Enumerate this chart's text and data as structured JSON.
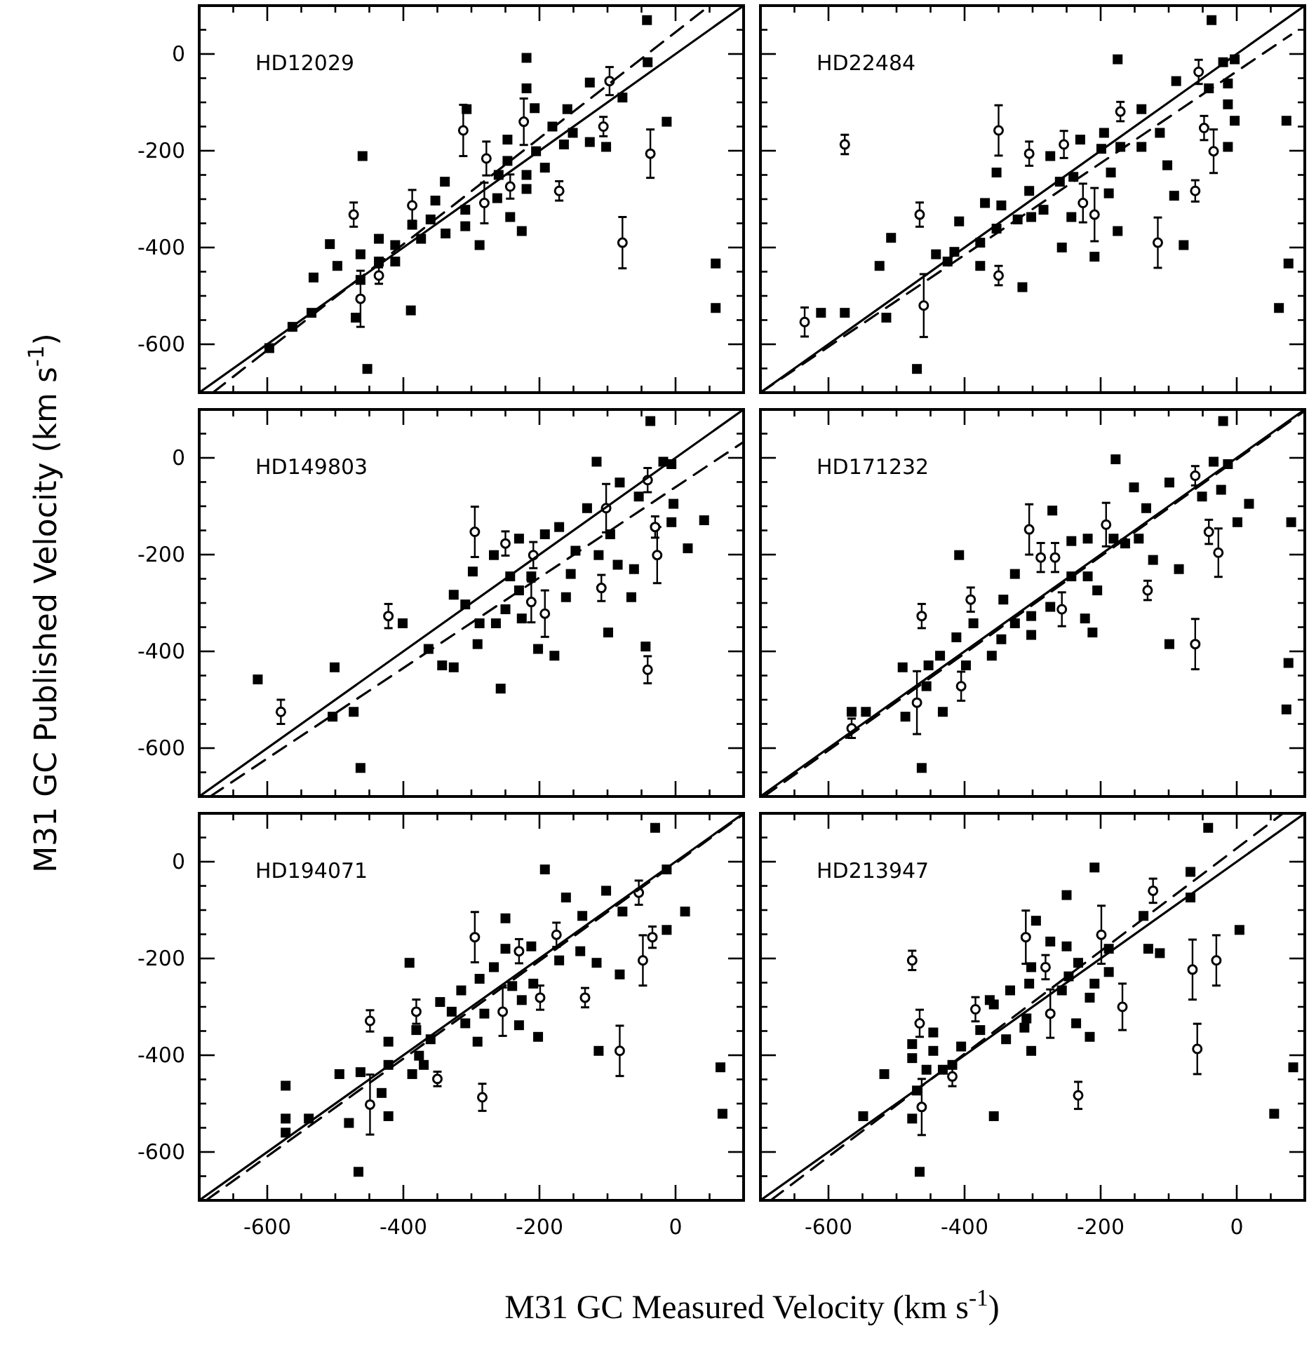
{
  "chart_data": [
    {
      "type": "scatter",
      "title": "HD12029",
      "tick_labels": "y",
      "xlim": [
        -700,
        100
      ],
      "ylim": [
        -700,
        100
      ],
      "xticks": [
        {
          "value": -650,
          "label": null
        },
        -600,
        {
          "value": -550,
          "label": null
        },
        {
          "value": -500,
          "label": null
        },
        {
          "value": -450,
          "label": null
        },
        -400,
        {
          "value": -350,
          "label": null
        },
        {
          "value": -300,
          "label": null
        },
        {
          "value": -250,
          "label": null
        },
        -200,
        {
          "value": -150,
          "label": null
        },
        {
          "value": -100,
          "label": null
        },
        {
          "value": -50,
          "label": null
        },
        0,
        {
          "value": 50,
          "label": null
        }
      ],
      "yticks": [
        {
          "value": -650,
          "label": null
        },
        -600,
        {
          "value": -550,
          "label": null
        },
        {
          "value": -500,
          "label": null
        },
        {
          "value": -450,
          "label": null
        },
        -400,
        {
          "value": -350,
          "label": null
        },
        {
          "value": -300,
          "label": null
        },
        {
          "value": -250,
          "label": null
        },
        -200,
        {
          "value": -150,
          "label": null
        },
        {
          "value": -100,
          "label": null
        },
        {
          "value": -50,
          "label": null
        },
        0,
        {
          "value": 50,
          "label": null
        }
      ],
      "series": [
        {
          "type": "scatter",
          "marker": "square",
          "color": "#000000",
          "x": [
            -42,
            -219,
            -41,
            -126,
            -78,
            -219,
            -207,
            -159,
            -307,
            -13,
            -181,
            -151,
            -164,
            -126,
            -102,
            -205,
            -192,
            -247,
            -247,
            -260,
            -219,
            -219,
            -262,
            -243,
            -226,
            -288,
            -309,
            -309,
            -339,
            -353,
            -338,
            -387,
            -374,
            -360,
            -412,
            -412,
            -436,
            -436,
            -463,
            -463,
            -508,
            -497,
            -532,
            -535,
            -470,
            -460,
            -389,
            -453,
            59,
            59,
            -597,
            -563
          ],
          "values": [
            70,
            -8,
            -17,
            -59,
            -90,
            -71,
            -112,
            -114,
            -114,
            -140,
            -150,
            -163,
            -187,
            -182,
            -192,
            -201,
            -235,
            -177,
            -221,
            -250,
            -250,
            -279,
            -298,
            -337,
            -366,
            -395,
            -322,
            -356,
            -264,
            -303,
            -371,
            -353,
            -382,
            -342,
            -395,
            -429,
            -429,
            -382,
            -414,
            -467,
            -393,
            -438,
            -462,
            -535,
            -545,
            -211,
            -530,
            -651,
            -433,
            -525,
            -608,
            -564
          ]
        },
        {
          "type": "scatter",
          "marker": "circle",
          "color": "#000000",
          "x": [
            -97,
            -223,
            -312,
            -106,
            -37,
            -278,
            -243,
            -171,
            -281,
            -387,
            -436,
            -473,
            -463,
            -78
          ],
          "values": [
            -56,
            -140,
            -158,
            -150,
            -206,
            -216,
            -274,
            -283,
            -308,
            -313,
            -458,
            -332,
            -506,
            -390
          ],
          "errors": [
            29,
            48,
            53,
            20,
            50,
            35,
            25,
            20,
            42,
            32,
            17,
            25,
            58,
            53
          ]
        },
        {
          "type": "line",
          "line_style": "solid",
          "color": "#000000",
          "x": [
            -700,
            100
          ],
          "values": [
            -700,
            100
          ]
        },
        {
          "type": "line",
          "line_style": "dashed",
          "color": "#000000",
          "x": [
            -680,
            50
          ],
          "values": [
            -700,
            100
          ]
        }
      ]
    },
    {
      "type": "scatter",
      "title": "HD22484",
      "tick_labels": false,
      "xlim": [
        -700,
        100
      ],
      "ylim": [
        -700,
        100
      ],
      "xticks": [
        {
          "value": -650,
          "label": null
        },
        -600,
        {
          "value": -550,
          "label": null
        },
        {
          "value": -500,
          "label": null
        },
        {
          "value": -450,
          "label": null
        },
        -400,
        {
          "value": -350,
          "label": null
        },
        {
          "value": -300,
          "label": null
        },
        {
          "value": -250,
          "label": null
        },
        -200,
        {
          "value": -150,
          "label": null
        },
        {
          "value": -100,
          "label": null
        },
        {
          "value": -50,
          "label": null
        },
        0,
        {
          "value": 50,
          "label": null
        }
      ],
      "yticks": [
        {
          "value": -650,
          "label": null
        },
        -600,
        {
          "value": -550,
          "label": null
        },
        {
          "value": -500,
          "label": null
        },
        {
          "value": -450,
          "label": null
        },
        -400,
        {
          "value": -350,
          "label": null
        },
        {
          "value": -300,
          "label": null
        },
        {
          "value": -250,
          "label": null
        },
        -200,
        {
          "value": -150,
          "label": null
        },
        {
          "value": -100,
          "label": null
        },
        {
          "value": -50,
          "label": null
        },
        0,
        {
          "value": 50,
          "label": null
        }
      ],
      "series": [
        {
          "type": "scatter",
          "marker": "square",
          "color": "#000000",
          "x": [
            -37,
            -175,
            -20,
            -3,
            -89,
            -41,
            -13,
            -13,
            -3,
            -13,
            73,
            -92,
            -102,
            -140,
            -113,
            -140,
            -171,
            -195,
            -199,
            -230,
            -274,
            -353,
            -260,
            -240,
            -185,
            -188,
            -243,
            -284,
            -305,
            -302,
            -322,
            -346,
            -370,
            -353,
            -377,
            -408,
            -415,
            -425,
            -442,
            -377,
            -315,
            -257,
            -209,
            -175,
            -78,
            -508,
            -525,
            -515,
            -576,
            -611,
            -470,
            76,
            62
          ],
          "values": [
            70,
            -11,
            -17,
            -11,
            -56,
            -71,
            -61,
            -104,
            -138,
            -192,
            -138,
            -293,
            -230,
            -192,
            -163,
            -114,
            -192,
            -163,
            -196,
            -177,
            -211,
            -245,
            -264,
            -254,
            -245,
            -288,
            -337,
            -322,
            -283,
            -337,
            -342,
            -313,
            -308,
            -361,
            -390,
            -346,
            -409,
            -429,
            -414,
            -438,
            -482,
            -400,
            -419,
            -366,
            -395,
            -380,
            -438,
            -545,
            -535,
            -535,
            -651,
            -433,
            -525
          ]
        },
        {
          "type": "scatter",
          "marker": "circle",
          "color": "#000000",
          "x": [
            -56,
            -48,
            -34,
            -61,
            -171,
            -254,
            -305,
            -350,
            -226,
            -209,
            -350,
            -116,
            -466,
            -460,
            -635,
            -576
          ],
          "values": [
            -37,
            -153,
            -201,
            -283,
            -119,
            -187,
            -206,
            -158,
            -308,
            -332,
            -458,
            -390,
            -332,
            -520,
            -554,
            -187
          ],
          "errors": [
            25,
            25,
            45,
            22,
            20,
            28,
            25,
            52,
            40,
            55,
            20,
            52,
            25,
            65,
            30,
            20
          ]
        },
        {
          "type": "line",
          "line_style": "solid",
          "color": "#000000",
          "x": [
            -700,
            100
          ],
          "values": [
            -700,
            100
          ]
        },
        {
          "type": "line",
          "line_style": "dashed",
          "color": "#000000",
          "x": [
            -700,
            80
          ],
          "values": [
            -700,
            40
          ]
        }
      ]
    },
    {
      "type": "scatter",
      "title": "HD149803",
      "tick_labels": "y",
      "ylabel": "M31 GC Published Velocity (km s$^{-1}$)",
      "xlim": [
        -700,
        100
      ],
      "ylim": [
        -700,
        100
      ],
      "xticks": [
        {
          "value": -650,
          "label": null
        },
        -600,
        {
          "value": -550,
          "label": null
        },
        {
          "value": -500,
          "label": null
        },
        {
          "value": -450,
          "label": null
        },
        -400,
        {
          "value": -350,
          "label": null
        },
        {
          "value": -300,
          "label": null
        },
        {
          "value": -250,
          "label": null
        },
        -200,
        {
          "value": -150,
          "label": null
        },
        {
          "value": -100,
          "label": null
        },
        {
          "value": -50,
          "label": null
        },
        0,
        {
          "value": 50,
          "label": null
        }
      ],
      "yticks": [
        {
          "value": -650,
          "label": null
        },
        -600,
        {
          "value": -550,
          "label": null
        },
        {
          "value": -500,
          "label": null
        },
        {
          "value": -450,
          "label": null
        },
        -400,
        {
          "value": -350,
          "label": null
        },
        {
          "value": -300,
          "label": null
        },
        {
          "value": -250,
          "label": null
        },
        -200,
        {
          "value": -150,
          "label": null
        },
        {
          "value": -100,
          "label": null
        },
        {
          "value": -50,
          "label": null
        },
        0,
        {
          "value": 50,
          "label": null
        }
      ],
      "series": [
        {
          "type": "scatter",
          "marker": "square",
          "color": "#000000",
          "x": [
            -37,
            -116,
            -18,
            -6,
            -82,
            -54,
            -130,
            -3,
            -6,
            42,
            18,
            -96,
            -113,
            -85,
            -61,
            -65,
            -99,
            -44,
            -147,
            -154,
            -161,
            -171,
            -192,
            -212,
            -230,
            -267,
            -243,
            -230,
            -226,
            -250,
            -264,
            -288,
            -291,
            -298,
            -309,
            -326,
            -202,
            -178,
            -257,
            -363,
            -343,
            -326,
            -401,
            -501,
            -504,
            -473,
            -614,
            -463
          ],
          "values": [
            76,
            -8,
            -8,
            -13,
            -51,
            -80,
            -104,
            -95,
            -133,
            -129,
            -187,
            -158,
            -201,
            -221,
            -230,
            -288,
            -361,
            -390,
            -192,
            -240,
            -288,
            -143,
            -158,
            -245,
            -167,
            -201,
            -245,
            -274,
            -332,
            -313,
            -342,
            -342,
            -385,
            -235,
            -303,
            -283,
            -395,
            -409,
            -477,
            -395,
            -429,
            -433,
            -342,
            -433,
            -535,
            -525,
            -458,
            -641
          ]
        },
        {
          "type": "scatter",
          "marker": "circle",
          "color": "#000000",
          "x": [
            -102,
            -41,
            -30,
            -27,
            -109,
            -41,
            -209,
            -212,
            -192,
            -250,
            -295,
            -422,
            -580
          ],
          "values": [
            -104,
            -46,
            -143,
            -201,
            -269,
            -438,
            -201,
            -298,
            -322,
            -177,
            -153,
            -327,
            -525
          ],
          "errors": [
            50,
            25,
            22,
            58,
            27,
            28,
            27,
            42,
            48,
            25,
            52,
            25,
            25
          ]
        },
        {
          "type": "line",
          "line_style": "solid",
          "color": "#000000",
          "x": [
            -700,
            100
          ],
          "values": [
            -700,
            100
          ]
        },
        {
          "type": "line",
          "line_style": "dashed",
          "color": "#000000",
          "x": [
            -684,
            100
          ],
          "values": [
            -700,
            33
          ]
        }
      ]
    },
    {
      "type": "scatter",
      "title": "HD171232",
      "tick_labels": false,
      "xlim": [
        -700,
        100
      ],
      "ylim": [
        -700,
        100
      ],
      "xticks": [
        {
          "value": -650,
          "label": null
        },
        -600,
        {
          "value": -550,
          "label": null
        },
        {
          "value": -500,
          "label": null
        },
        {
          "value": -450,
          "label": null
        },
        -400,
        {
          "value": -350,
          "label": null
        },
        {
          "value": -300,
          "label": null
        },
        {
          "value": -250,
          "label": null
        },
        -200,
        {
          "value": -150,
          "label": null
        },
        {
          "value": -100,
          "label": null
        },
        {
          "value": -50,
          "label": null
        },
        0,
        {
          "value": 50,
          "label": null
        }
      ],
      "yticks": [
        {
          "value": -650,
          "label": null
        },
        -600,
        {
          "value": -550,
          "label": null
        },
        {
          "value": -500,
          "label": null
        },
        {
          "value": -450,
          "label": null
        },
        -400,
        {
          "value": -350,
          "label": null
        },
        {
          "value": -300,
          "label": null
        },
        {
          "value": -250,
          "label": null
        },
        -200,
        {
          "value": -150,
          "label": null
        },
        {
          "value": -100,
          "label": null
        },
        {
          "value": -50,
          "label": null
        },
        0,
        {
          "value": 50,
          "label": null
        }
      ],
      "series": [
        {
          "type": "scatter",
          "marker": "square",
          "color": "#000000",
          "x": [
            -20,
            -178,
            -34,
            -13,
            -151,
            -99,
            -51,
            -23,
            18,
            1,
            80,
            -133,
            -271,
            -144,
            -164,
            -181,
            -219,
            -243,
            -326,
            -408,
            -243,
            -219,
            -205,
            -223,
            -212,
            -274,
            -302,
            -302,
            -326,
            -346,
            -343,
            -387,
            -412,
            -398,
            -360,
            -436,
            -453,
            -456,
            -491,
            -432,
            -487,
            -545,
            -566,
            -463,
            -123,
            -85,
            -99,
            76,
            73
          ],
          "values": [
            76,
            -3,
            -8,
            -13,
            -61,
            -51,
            -80,
            -66,
            -95,
            -133,
            -133,
            -104,
            -109,
            -167,
            -177,
            -167,
            -167,
            -172,
            -240,
            -201,
            -245,
            -245,
            -274,
            -332,
            -361,
            -308,
            -327,
            -366,
            -342,
            -375,
            -293,
            -342,
            -371,
            -429,
            -409,
            -409,
            -429,
            -472,
            -433,
            -525,
            -535,
            -525,
            -525,
            -641,
            -211,
            -230,
            -385,
            -424,
            -520
          ]
        },
        {
          "type": "scatter",
          "marker": "circle",
          "color": "#000000",
          "x": [
            -61,
            -192,
            -305,
            -288,
            -267,
            -257,
            -391,
            -405,
            -463,
            -470,
            -566,
            -131,
            -27,
            -41,
            -61
          ],
          "values": [
            -37,
            -138,
            -148,
            -206,
            -206,
            -313,
            -293,
            -472,
            -327,
            -506,
            -559,
            -274,
            -196,
            -153,
            -385
          ],
          "errors": [
            20,
            45,
            52,
            30,
            30,
            35,
            25,
            30,
            25,
            65,
            20,
            20,
            50,
            25,
            52
          ]
        },
        {
          "type": "line",
          "line_style": "solid",
          "color": "#000000",
          "x": [
            -700,
            100
          ],
          "values": [
            -700,
            100
          ]
        },
        {
          "type": "line",
          "line_style": "dashed",
          "color": "#000000",
          "x": [
            -695,
            100
          ],
          "values": [
            -700,
            97
          ]
        }
      ]
    },
    {
      "type": "scatter",
      "title": "HD194071",
      "xlabel": "M31 GC Measured Velocity (km s$^{-1}$)",
      "xlim": [
        -700,
        100
      ],
      "ylim": [
        -700,
        100
      ],
      "xticks": [
        {
          "value": -650,
          "label": null
        },
        -600,
        {
          "value": -550,
          "label": null
        },
        {
          "value": -500,
          "label": null
        },
        {
          "value": -450,
          "label": null
        },
        -400,
        {
          "value": -350,
          "label": null
        },
        {
          "value": -300,
          "label": null
        },
        {
          "value": -250,
          "label": null
        },
        -200,
        {
          "value": -150,
          "label": null
        },
        {
          "value": -100,
          "label": null
        },
        {
          "value": -50,
          "label": null
        },
        0,
        {
          "value": 50,
          "label": null
        }
      ],
      "yticks": [
        {
          "value": -650,
          "label": null
        },
        -600,
        {
          "value": -550,
          "label": null
        },
        {
          "value": -500,
          "label": null
        },
        {
          "value": -450,
          "label": null
        },
        -400,
        {
          "value": -350,
          "label": null
        },
        {
          "value": -300,
          "label": null
        },
        {
          "value": -250,
          "label": null
        },
        -200,
        {
          "value": -150,
          "label": null
        },
        {
          "value": -100,
          "label": null
        },
        {
          "value": -50,
          "label": null
        },
        0,
        {
          "value": 50,
          "label": null
        }
      ],
      "series": [
        {
          "type": "scatter",
          "marker": "square",
          "color": "#000000",
          "x": [
            -30,
            -192,
            -13,
            -102,
            -161,
            -78,
            14,
            -137,
            -13,
            -82,
            -171,
            -140,
            -116,
            -250,
            -250,
            -212,
            -267,
            -288,
            -209,
            -226,
            -240,
            -230,
            -202,
            -281,
            -291,
            -315,
            -309,
            -346,
            -329,
            -381,
            -360,
            -377,
            -370,
            -387,
            -391,
            -422,
            -422,
            -432,
            -422,
            -463,
            -494,
            -480,
            -539,
            -573,
            -573,
            -573,
            -466,
            -113,
            66,
            69
          ],
          "values": [
            70,
            -16,
            -16,
            -60,
            -74,
            -103,
            -103,
            -112,
            -141,
            -233,
            -204,
            -185,
            -209,
            -117,
            -180,
            -175,
            -218,
            -242,
            -252,
            -286,
            -257,
            -338,
            -362,
            -314,
            -372,
            -266,
            -334,
            -290,
            -310,
            -348,
            -367,
            -401,
            -420,
            -439,
            -209,
            -372,
            -420,
            -478,
            -526,
            -435,
            -439,
            -540,
            -531,
            -531,
            -560,
            -463,
            -641,
            -391,
            -425,
            -521
          ]
        },
        {
          "type": "scatter",
          "marker": "circle",
          "color": "#000000",
          "x": [
            -54,
            -34,
            -48,
            -175,
            -295,
            -230,
            -199,
            -254,
            -381,
            -350,
            -449,
            -449,
            -284,
            -133,
            -82
          ],
          "values": [
            -64,
            -156,
            -204,
            -151,
            -156,
            -185,
            -281,
            -310,
            -310,
            -449,
            -329,
            -502,
            -487,
            -281,
            -391
          ],
          "errors": [
            25,
            22,
            52,
            25,
            52,
            25,
            25,
            50,
            25,
            15,
            22,
            62,
            28,
            20,
            52
          ]
        },
        {
          "type": "line",
          "line_style": "solid",
          "color": "#000000",
          "x": [
            -700,
            100
          ],
          "values": [
            -700,
            100
          ]
        },
        {
          "type": "line",
          "line_style": "dashed",
          "color": "#000000",
          "x": [
            -690,
            100
          ],
          "values": [
            -700,
            98
          ]
        }
      ]
    },
    {
      "type": "scatter",
      "title": "HD213947",
      "tick_labels": "x",
      "xlim": [
        -700,
        100
      ],
      "ylim": [
        -700,
        100
      ],
      "xticks": [
        {
          "value": -650,
          "label": null
        },
        -600,
        {
          "value": -550,
          "label": null
        },
        {
          "value": -500,
          "label": null
        },
        {
          "value": -450,
          "label": null
        },
        -400,
        {
          "value": -350,
          "label": null
        },
        {
          "value": -300,
          "label": null
        },
        {
          "value": -250,
          "label": null
        },
        -200,
        {
          "value": -150,
          "label": null
        },
        {
          "value": -100,
          "label": null
        },
        {
          "value": -50,
          "label": null
        },
        0,
        {
          "value": 50,
          "label": null
        }
      ],
      "yticks": [
        {
          "value": -650,
          "label": null
        },
        -600,
        {
          "value": -550,
          "label": null
        },
        {
          "value": -500,
          "label": null
        },
        {
          "value": -450,
          "label": null
        },
        -400,
        {
          "value": -350,
          "label": null
        },
        {
          "value": -300,
          "label": null
        },
        {
          "value": -250,
          "label": null
        },
        -200,
        {
          "value": -150,
          "label": null
        },
        {
          "value": -100,
          "label": null
        },
        {
          "value": -50,
          "label": null
        },
        0,
        {
          "value": 50,
          "label": null
        }
      ],
      "series": [
        {
          "type": "scatter",
          "marker": "square",
          "color": "#000000",
          "x": [
            -42,
            -209,
            -250,
            -68,
            -68,
            4,
            -137,
            -130,
            -113,
            -188,
            -188,
            -209,
            -216,
            -233,
            -247,
            -257,
            -250,
            -274,
            -302,
            -295,
            -305,
            -333,
            -309,
            -312,
            -302,
            -236,
            -216,
            -339,
            -357,
            -363,
            -377,
            -405,
            -418,
            -432,
            -446,
            -446,
            -477,
            -477,
            -456,
            -470,
            -477,
            -518,
            -549,
            -357,
            -466,
            83,
            55
          ],
          "values": [
            70,
            -12,
            -69,
            -21,
            -74,
            -141,
            -112,
            -180,
            -189,
            -180,
            -228,
            -252,
            -281,
            -209,
            -237,
            -266,
            -175,
            -165,
            -218,
            -122,
            -252,
            -266,
            -324,
            -343,
            -391,
            -334,
            -362,
            -367,
            -295,
            -286,
            -348,
            -382,
            -420,
            -430,
            -353,
            -391,
            -377,
            -406,
            -430,
            -473,
            -531,
            -439,
            -526,
            -526,
            -641,
            -425,
            -521
          ]
        },
        {
          "type": "scatter",
          "marker": "circle",
          "color": "#000000",
          "x": [
            -123,
            -65,
            -30,
            -58,
            -199,
            -281,
            -310,
            -274,
            -168,
            -233,
            -384,
            -418,
            -466,
            -463,
            -477
          ],
          "values": [
            -60,
            -223,
            -204,
            -387,
            -151,
            -218,
            -156,
            -314,
            -300,
            -483,
            -305,
            -444,
            -334,
            -507,
            -204
          ],
          "errors": [
            25,
            62,
            52,
            52,
            60,
            25,
            55,
            50,
            48,
            28,
            25,
            20,
            28,
            58,
            20
          ]
        },
        {
          "type": "line",
          "line_style": "solid",
          "color": "#000000",
          "x": [
            -700,
            100
          ],
          "values": [
            -700,
            100
          ]
        },
        {
          "type": "line",
          "line_style": "dashed",
          "color": "#000000",
          "x": [
            -685,
            68
          ],
          "values": [
            -700,
            100
          ]
        }
      ]
    }
  ]
}
